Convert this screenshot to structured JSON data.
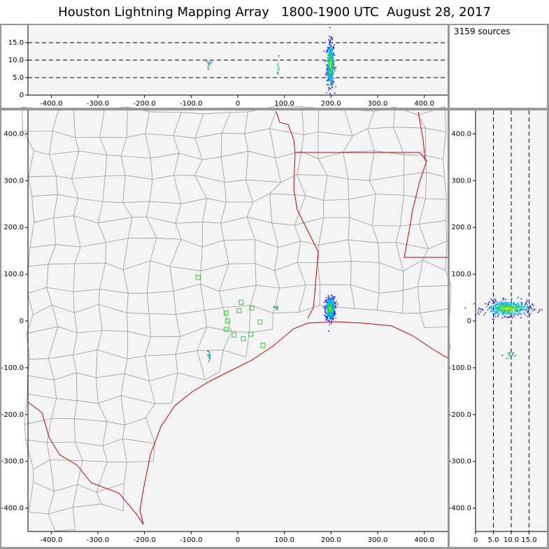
{
  "title": "Houston Lightning Mapping Array   1800-1900 UTC  August 28, 2017",
  "source_count_label": "3159 sources",
  "colors": {
    "frame": "#999999",
    "panel_bg": "#f4f4f4",
    "county": "#9a9a9a",
    "state": "#cc0000",
    "station": "#33cc33",
    "dashed": "#000000"
  },
  "chart_data": [
    {
      "type": "scatter",
      "panel": "altitude-vs-east-west",
      "xlim": [
        -450,
        450
      ],
      "ylim": [
        0,
        20
      ],
      "xticks": [
        -400,
        -300,
        -200,
        -100,
        0,
        100,
        200,
        300,
        400
      ],
      "xtick_labels": [
        "-400.0",
        "-300.0",
        "-200.0",
        "-100.0",
        "0",
        "100.0",
        "200.0",
        "300.0",
        "400.0"
      ],
      "yticks": [
        0,
        5,
        10,
        15
      ],
      "ytick_labels": [
        "0",
        "5.0",
        "10.0",
        "15.0"
      ],
      "reference_lines": [
        5,
        10,
        15
      ],
      "clusters": [
        {
          "x": 198,
          "y": 9,
          "sx": 4,
          "sy": 3.2,
          "n": 450
        },
        {
          "x": -62,
          "y": 9,
          "sx": 2,
          "sy": 0.8,
          "n": 16
        },
        {
          "x": 85,
          "y": 8.5,
          "sx": 1.5,
          "sy": 1.5,
          "n": 14
        }
      ]
    },
    {
      "type": "scatter",
      "panel": "plan-view-map",
      "xlim": [
        -450,
        450
      ],
      "ylim": [
        -450,
        450
      ],
      "xticks": [
        -400,
        -300,
        -200,
        -100,
        0,
        100,
        200,
        300,
        400
      ],
      "xtick_labels": [
        "-400.0",
        "-300.0",
        "-200.0",
        "-100.0",
        "0",
        "100.0",
        "200.0",
        "300.0",
        "400.0"
      ],
      "yticks": [
        -400,
        -300,
        -200,
        -100,
        0,
        100,
        200,
        300,
        400
      ],
      "ytick_labels": [
        "-400.0",
        "-300.0",
        "-200.0",
        "-100.0",
        "0",
        "100.0",
        "200.0",
        "300.0",
        "400.0"
      ],
      "clusters": [
        {
          "x": 197,
          "y": 28,
          "sx": 5,
          "sy": 12,
          "n": 500
        },
        {
          "x": 82,
          "y": 30,
          "sx": 2,
          "sy": 2,
          "n": 14
        },
        {
          "x": -62,
          "y": -72,
          "sx": 2,
          "sy": 4,
          "n": 18
        }
      ],
      "stations": [
        {
          "x": -85,
          "y": 93
        },
        {
          "x": -25,
          "y": 17
        },
        {
          "x": 7,
          "y": 40
        },
        {
          "x": 30,
          "y": 28
        },
        {
          "x": 3,
          "y": 22
        },
        {
          "x": -22,
          "y": 0
        },
        {
          "x": -25,
          "y": -18
        },
        {
          "x": -8,
          "y": -30
        },
        {
          "x": 12,
          "y": -38
        },
        {
          "x": 28,
          "y": -28
        },
        {
          "x": 48,
          "y": -2
        },
        {
          "x": 54,
          "y": -52
        }
      ]
    },
    {
      "type": "scatter",
      "panel": "north-south-vs-altitude",
      "xlim": [
        0,
        20
      ],
      "ylim": [
        -450,
        450
      ],
      "xticks": [
        0,
        5,
        10,
        15
      ],
      "xtick_labels": [
        "0",
        "5.0",
        "10.0",
        "15.0"
      ],
      "yticks": [
        -400,
        -300,
        -200,
        -100,
        0,
        100,
        200,
        300,
        400
      ],
      "ytick_labels": [
        "-400.0",
        "-300.0",
        "-200.0",
        "-100.0",
        "0",
        "100.0",
        "200.0",
        "300.0",
        "400.0"
      ],
      "reference_lines": [
        5,
        10,
        15
      ],
      "clusters": [
        {
          "x": 9,
          "y": 28,
          "sx": 3.2,
          "sy": 8,
          "n": 480
        },
        {
          "x": 9,
          "y": -72,
          "sx": 0.7,
          "sy": 4,
          "n": 14
        }
      ]
    }
  ]
}
